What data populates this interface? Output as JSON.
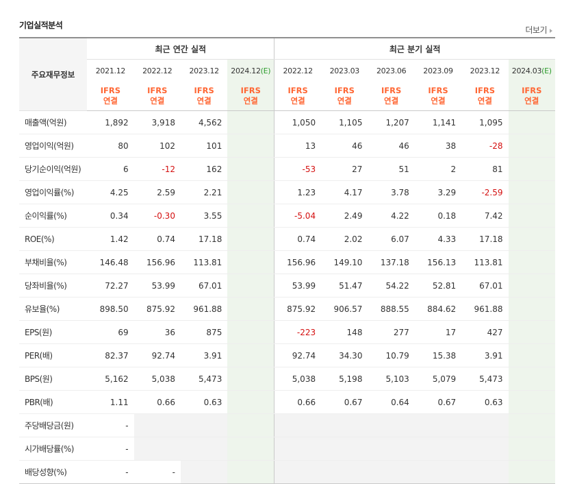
{
  "section_title": "기업실적분석",
  "more_label": "더보기",
  "row_header_label": "주요재무정보",
  "group_annual": "최근 연간 실적",
  "group_quarter": "최근 분기 실적",
  "ifrs_top": "IFRS",
  "ifrs_bottom": "연결",
  "estimate_color": "#2c9b2c",
  "negative_color": "#d40f0f",
  "ifrs_color": "#ff6633",
  "annual_periods": [
    "2021.12",
    "2022.12",
    "2023.12",
    "2024.12"
  ],
  "quarter_periods": [
    "2022.12",
    "2023.03",
    "2023.06",
    "2023.09",
    "2023.12",
    "2024.03"
  ],
  "estimate_suffix": "(E)",
  "rows": [
    {
      "label": "매출액(억원)",
      "annual": [
        "1,892",
        "3,918",
        "4,562",
        ""
      ],
      "quarter": [
        "1,050",
        "1,105",
        "1,207",
        "1,141",
        "1,095",
        ""
      ]
    },
    {
      "label": "영업이익(억원)",
      "annual": [
        "80",
        "102",
        "101",
        ""
      ],
      "quarter": [
        "13",
        "46",
        "46",
        "38",
        "-28",
        ""
      ]
    },
    {
      "label": "당기순이익(억원)",
      "annual": [
        "6",
        "-12",
        "162",
        ""
      ],
      "quarter": [
        "-53",
        "27",
        "51",
        "2",
        "81",
        ""
      ]
    },
    {
      "label": "영업이익률(%)",
      "annual": [
        "4.25",
        "2.59",
        "2.21",
        ""
      ],
      "quarter": [
        "1.23",
        "4.17",
        "3.78",
        "3.29",
        "-2.59",
        ""
      ]
    },
    {
      "label": "순이익률(%)",
      "annual": [
        "0.34",
        "-0.30",
        "3.55",
        ""
      ],
      "quarter": [
        "-5.04",
        "2.49",
        "4.22",
        "0.18",
        "7.42",
        ""
      ]
    },
    {
      "label": "ROE(%)",
      "annual": [
        "1.42",
        "0.74",
        "17.18",
        ""
      ],
      "quarter": [
        "0.74",
        "2.02",
        "6.07",
        "4.33",
        "17.18",
        ""
      ]
    },
    {
      "label": "부채비율(%)",
      "annual": [
        "146.48",
        "156.96",
        "113.81",
        ""
      ],
      "quarter": [
        "156.96",
        "149.10",
        "137.18",
        "156.13",
        "113.81",
        ""
      ]
    },
    {
      "label": "당좌비율(%)",
      "annual": [
        "72.27",
        "53.99",
        "67.01",
        ""
      ],
      "quarter": [
        "53.99",
        "51.47",
        "54.22",
        "52.81",
        "67.01",
        ""
      ]
    },
    {
      "label": "유보율(%)",
      "annual": [
        "898.50",
        "875.92",
        "961.88",
        ""
      ],
      "quarter": [
        "875.92",
        "906.57",
        "888.55",
        "884.62",
        "961.88",
        ""
      ]
    },
    {
      "label": "EPS(원)",
      "annual": [
        "69",
        "36",
        "875",
        ""
      ],
      "quarter": [
        "-223",
        "148",
        "277",
        "17",
        "427",
        ""
      ]
    },
    {
      "label": "PER(배)",
      "annual": [
        "82.37",
        "92.74",
        "3.91",
        ""
      ],
      "quarter": [
        "92.74",
        "34.30",
        "10.79",
        "15.38",
        "3.91",
        ""
      ]
    },
    {
      "label": "BPS(원)",
      "annual": [
        "5,162",
        "5,038",
        "5,473",
        ""
      ],
      "quarter": [
        "5,038",
        "5,198",
        "5,103",
        "5,079",
        "5,473",
        ""
      ]
    },
    {
      "label": "PBR(배)",
      "annual": [
        "1.11",
        "0.66",
        "0.63",
        ""
      ],
      "quarter": [
        "0.66",
        "0.67",
        "0.64",
        "0.67",
        "0.63",
        ""
      ]
    },
    {
      "label": "주당배당금(원)",
      "annual": [
        "-",
        "",
        "",
        ""
      ],
      "quarter": [
        "",
        "",
        "",
        "",
        "",
        ""
      ]
    },
    {
      "label": "시가배당률(%)",
      "annual": [
        "-",
        "",
        "",
        ""
      ],
      "quarter": [
        "",
        "",
        "",
        "",
        "",
        ""
      ]
    },
    {
      "label": "배당성향(%)",
      "annual": [
        "-",
        "-",
        "",
        ""
      ],
      "quarter": [
        "",
        "",
        "",
        "",
        "",
        ""
      ]
    }
  ]
}
